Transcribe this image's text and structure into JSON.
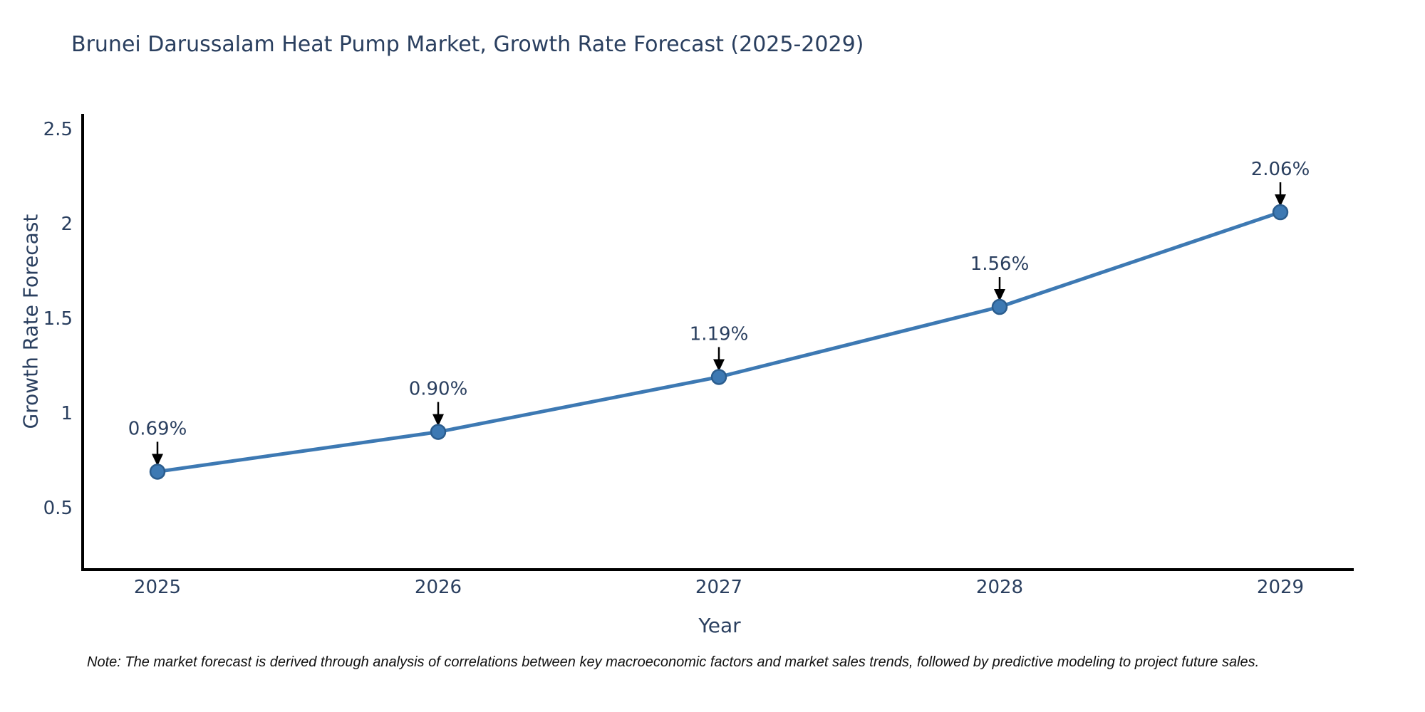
{
  "chart_data": {
    "type": "line",
    "title": "Brunei Darussalam Heat Pump Market, Growth Rate Forecast (2025-2029)",
    "x": [
      "2025",
      "2026",
      "2027",
      "2028",
      "2029"
    ],
    "series": [
      {
        "name": "Growth Rate Forecast",
        "values": [
          0.69,
          0.9,
          1.19,
          1.56,
          2.06
        ]
      }
    ],
    "point_labels": [
      "0.69%",
      "0.90%",
      "1.19%",
      "1.56%",
      "2.06%"
    ],
    "xlabel": "Year",
    "ylabel": "Growth Rate Forecast",
    "ytick_values": [
      0.5,
      1.0,
      1.5,
      2.0,
      2.5
    ],
    "ytick_labels": [
      "0.5",
      "1",
      "1.5",
      "2",
      "2.5"
    ],
    "ylim": [
      0.18,
      2.58
    ],
    "grid": false,
    "legend_position": "none",
    "colors": {
      "line": "#3d79b3",
      "marker_fill": "#3d79b3",
      "marker_edge": "#2b5d8e",
      "axis": "#000000",
      "tick_text": "#2a3f5f",
      "annotation_text": "#2a3f5f",
      "arrow": "#000000",
      "background": "#ffffff"
    }
  },
  "note": "Note: The market forecast is derived through analysis of correlations between key macroeconomic factors and market sales trends, followed by predictive modeling to project future sales."
}
